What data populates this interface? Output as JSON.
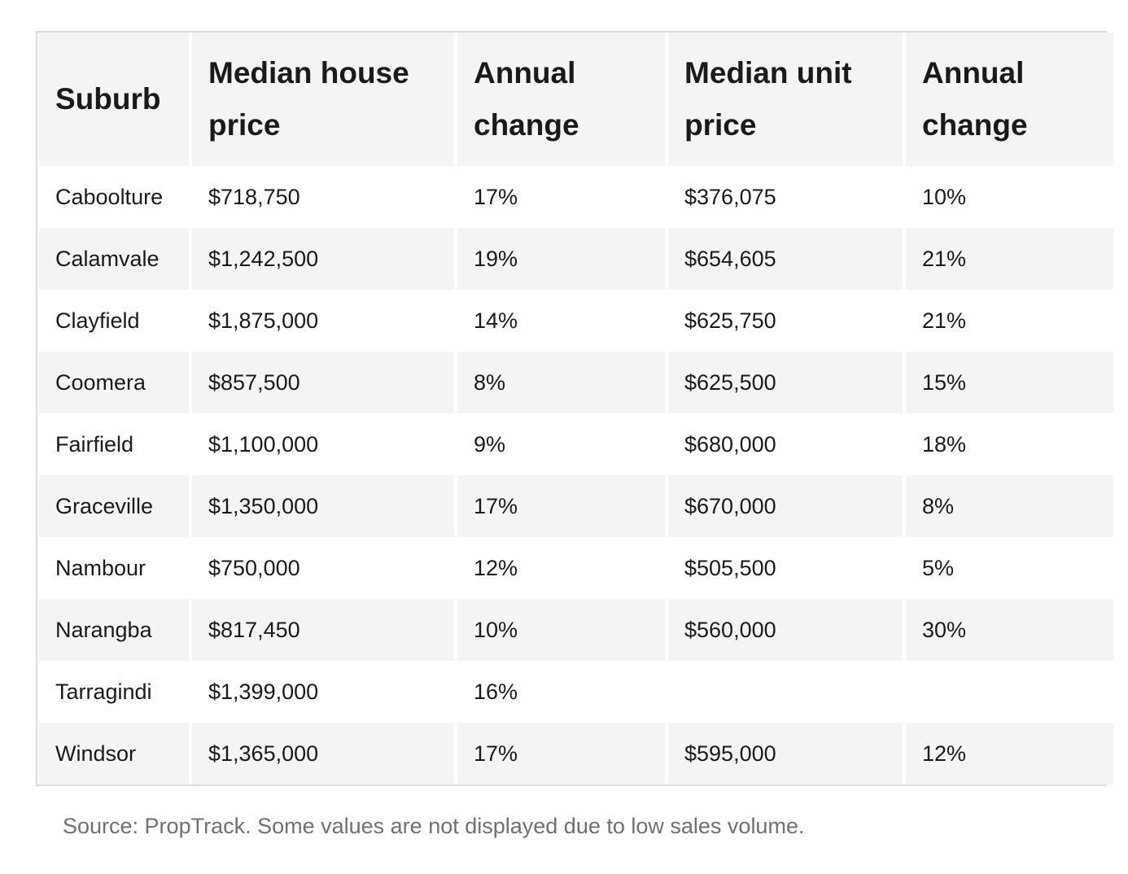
{
  "table": {
    "headers": [
      "Suburb",
      "Median house price",
      "Annual change",
      "Median unit price",
      "Annual change"
    ],
    "rows": [
      [
        "Caboolture",
        "$718,750",
        "17%",
        "$376,075",
        "10%"
      ],
      [
        "Calamvale",
        "$1,242,500",
        "19%",
        "$654,605",
        "21%"
      ],
      [
        "Clayfield",
        "$1,875,000",
        "14%",
        "$625,750",
        "21%"
      ],
      [
        "Coomera",
        "$857,500",
        "8%",
        "$625,500",
        "15%"
      ],
      [
        "Fairfield",
        "$1,100,000",
        "9%",
        "$680,000",
        "18%"
      ],
      [
        "Graceville",
        "$1,350,000",
        "17%",
        "$670,000",
        "8%"
      ],
      [
        "Nambour",
        "$750,000",
        "12%",
        "$505,500",
        "5%"
      ],
      [
        "Narangba",
        "$817,450",
        "10%",
        "$560,000",
        "30%"
      ],
      [
        "Tarragindi",
        "$1,399,000",
        "16%",
        "",
        ""
      ],
      [
        "Windsor",
        "$1,365,000",
        "17%",
        "$595,000",
        "12%"
      ]
    ]
  },
  "source_note": "Source: PropTrack. Some values are not displayed due to low sales volume.",
  "colors": {
    "header_bg": "#f4f4f4",
    "stripe_bg": "#f4f4f4",
    "border": "#dcdcdc",
    "text": "#1a1a1a",
    "note_text": "#707070"
  }
}
